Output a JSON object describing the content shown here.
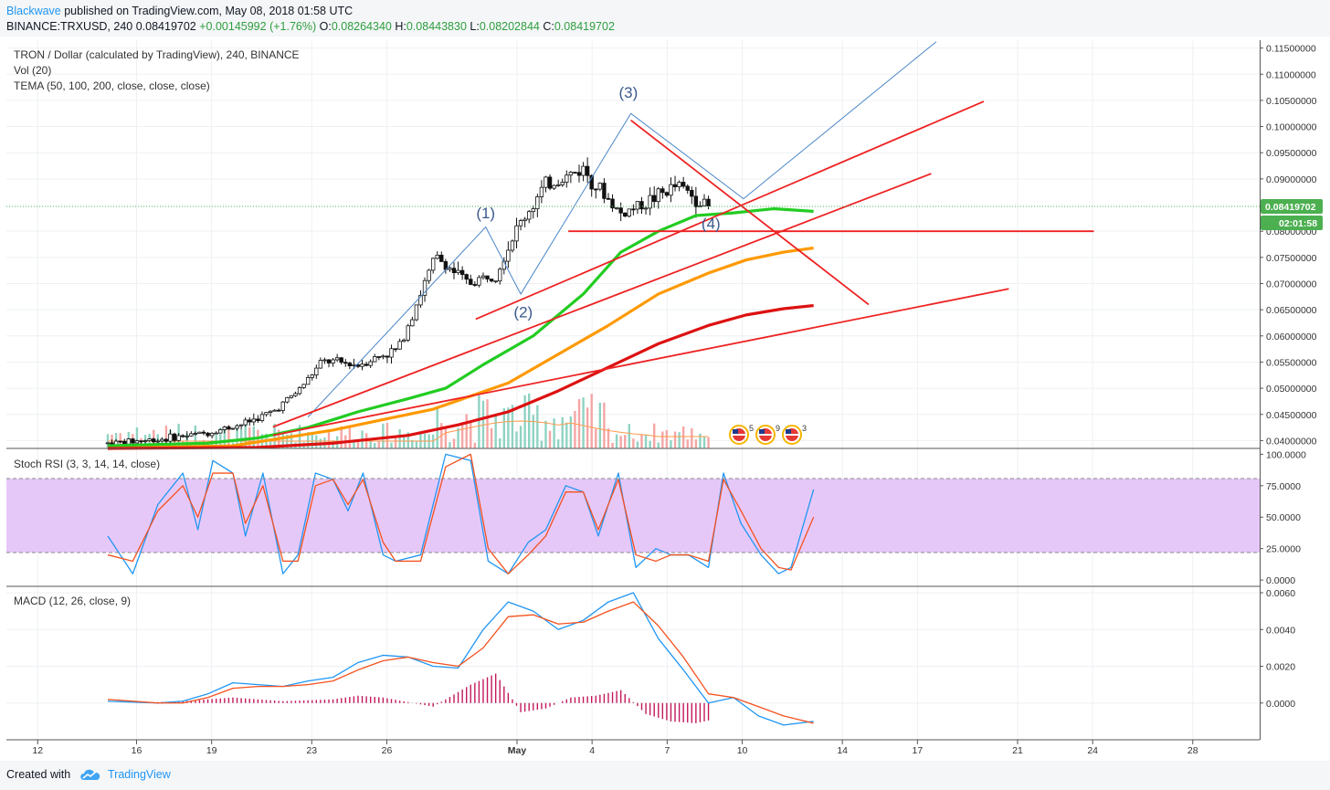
{
  "header": {
    "author": "Blackwave",
    "published": "published on TradingView.com, May 08, 2018 01:58 UTC",
    "symbol": "BINANCE:TRXUSD, 240",
    "last": "0.08419702",
    "change": "+0.00145992 (+1.76%)",
    "open_label": "O:",
    "open": "0.08264340",
    "high_label": "H:",
    "high": "0.08443830",
    "low_label": "L:",
    "low": "0.08202844",
    "close_label": "C:",
    "close": "0.08419702"
  },
  "footer": {
    "created_with": "Created with",
    "brand": "TradingView"
  },
  "colors": {
    "bull": "#26a69a",
    "bear": "#ef5350",
    "candle": "#111111",
    "tema50": "#22cc22",
    "tema100": "#ff9900",
    "tema200": "#dd1111",
    "trend": "#ee2222",
    "wave": "#4a86c8",
    "stoch_k": "#2196f3",
    "stoch_d": "#f4511e",
    "stoch_band": "#e6c8f8",
    "macd": "#2196f3",
    "signal": "#f4511e",
    "hist": "#c2185b",
    "price_label": "#4caf50"
  },
  "chart_data": [
    {
      "type": "candlestick",
      "title": "TRON / Dollar (calculated by TradingView), 240, BINANCE",
      "indicators": [
        "Vol (20)",
        "TEMA (50, 100, 200, close, close, close)"
      ],
      "y_ticks": [
        "0.11500000",
        "0.11000000",
        "0.10500000",
        "0.10000000",
        "0.09500000",
        "0.09000000",
        "0.08419702",
        "0.08000000",
        "0.07500000",
        "0.07000000",
        "0.06500000",
        "0.06000000",
        "0.05500000",
        "0.05000000",
        "0.04500000",
        "0.04000000"
      ],
      "ylim": [
        0.0385,
        0.1165
      ],
      "last_price": "0.08419702",
      "countdown": "02:01:58",
      "x_ticks": [
        "12",
        "16",
        "19",
        "23",
        "26",
        "May",
        "4",
        "7",
        "10",
        "14",
        "17",
        "21",
        "24",
        "28"
      ],
      "xlim": [
        0,
        27.6
      ],
      "approx_close_series": {
        "x": [
          0,
          2,
          4,
          5.4,
          6.6,
          7.6,
          8.6,
          10,
          11.6,
          13.1,
          14.4,
          15.5,
          16.4,
          17.5,
          19,
          19.7,
          20.5,
          21.6,
          22.8,
          24.1
        ],
        "y": [
          0.0395,
          0.0402,
          0.0415,
          0.0432,
          0.0455,
          0.0495,
          0.0552,
          0.0545,
          0.0575,
          0.0752,
          0.07,
          0.072,
          0.081,
          0.0887,
          0.092,
          0.0877,
          0.0833,
          0.0858,
          0.0888,
          0.0842
        ]
      },
      "wave_labels": [
        {
          "text": "(1)",
          "x": 15.1,
          "y": 0.0825
        },
        {
          "text": "(2)",
          "x": 16.6,
          "y": 0.0635
        },
        {
          "text": "(3)",
          "x": 20.8,
          "y": 0.1055
        },
        {
          "text": "(4)",
          "x": 24.1,
          "y": 0.0805
        }
      ],
      "wave_lines": [
        [
          [
            8.0,
            0.0445
          ],
          [
            15.1,
            0.0808
          ],
          [
            16.5,
            0.068
          ],
          [
            20.9,
            0.1025
          ],
          [
            25.4,
            0.0862
          ],
          [
            33.1,
            0.1162
          ]
        ]
      ],
      "trend_lines": [
        {
          "x1": 20.9,
          "y1": 0.1012,
          "x2": 30.4,
          "y2": 0.066
        },
        {
          "x1": 14.7,
          "y1": 0.0632,
          "x2": 35.0,
          "y2": 0.1048
        },
        {
          "x1": 6.6,
          "y1": 0.0426,
          "x2": 32.9,
          "y2": 0.091
        },
        {
          "x1": 18.4,
          "y1": 0.08,
          "x2": 39.4,
          "y2": 0.08
        },
        {
          "x1": 6.6,
          "y1": 0.041,
          "x2": 36.0,
          "y2": 0.069
        }
      ],
      "tema_series": [
        {
          "name": "TEMA 50",
          "x": [
            0,
            4,
            6,
            8,
            10,
            12,
            13.5,
            15,
            17,
            19,
            20.5,
            22,
            23.5,
            25,
            26.6,
            28.2
          ],
          "y": [
            0.039,
            0.0395,
            0.0405,
            0.0425,
            0.0455,
            0.048,
            0.05,
            0.0545,
            0.06,
            0.068,
            0.076,
            0.08,
            0.083,
            0.0835,
            0.0843,
            0.0838
          ]
        },
        {
          "name": "TEMA 100",
          "x": [
            0,
            5,
            7,
            9,
            11,
            13,
            14.5,
            16,
            18,
            20,
            22,
            24,
            25.5,
            27,
            28.2
          ],
          "y": [
            0.0385,
            0.039,
            0.0405,
            0.042,
            0.044,
            0.046,
            0.0485,
            0.051,
            0.0565,
            0.062,
            0.068,
            0.072,
            0.0745,
            0.076,
            0.0768
          ]
        },
        {
          "name": "TEMA 200",
          "x": [
            0,
            6,
            9,
            12,
            14,
            16,
            18,
            20,
            22,
            24,
            25.5,
            27,
            28.2
          ],
          "y": [
            0.0385,
            0.0387,
            0.0395,
            0.041,
            0.043,
            0.0455,
            0.0495,
            0.054,
            0.0585,
            0.062,
            0.064,
            0.0652,
            0.0658
          ]
        }
      ],
      "event_markers": [
        "5",
        "9",
        "3"
      ]
    },
    {
      "type": "line",
      "title": "Stoch RSI (3, 3, 14, 14, close)",
      "y_ticks": [
        "100.0000",
        "75.0000",
        "50.0000",
        "25.0000",
        "0.0000"
      ],
      "ylim": [
        -5,
        101
      ],
      "bands": [
        20,
        80
      ],
      "series": [
        {
          "name": "K",
          "x": [
            0,
            1,
            2,
            3,
            3.6,
            4.2,
            5,
            5.5,
            6.2,
            7,
            7.6,
            8.3,
            9,
            9.6,
            10.2,
            11,
            11.5,
            12.5,
            13.5,
            14.5,
            15.2,
            16,
            16.8,
            17.5,
            18.3,
            19,
            19.6,
            20.4,
            21.1,
            21.9,
            22.5,
            23.2,
            24,
            24.6,
            25.3,
            26.1,
            26.8,
            27.3,
            28.2
          ],
          "y": [
            35,
            5,
            60,
            85,
            40,
            95,
            85,
            35,
            85,
            5,
            20,
            85,
            80,
            55,
            85,
            20,
            15,
            20,
            100,
            95,
            15,
            5,
            30,
            40,
            75,
            70,
            35,
            85,
            10,
            25,
            20,
            20,
            10,
            85,
            45,
            20,
            5,
            10,
            72
          ]
        },
        {
          "name": "D",
          "x": [
            0,
            1,
            2,
            3,
            3.6,
            4.2,
            5,
            5.5,
            6.2,
            7,
            7.6,
            8.3,
            9,
            9.6,
            10.2,
            11,
            11.5,
            12.5,
            13.5,
            14.5,
            15.2,
            16,
            16.8,
            17.5,
            18.3,
            19,
            19.6,
            20.4,
            21.1,
            21.9,
            22.5,
            23.2,
            24,
            24.6,
            25.3,
            26.1,
            26.8,
            27.3,
            28.2
          ],
          "y": [
            20,
            15,
            55,
            75,
            50,
            85,
            85,
            45,
            75,
            15,
            15,
            75,
            80,
            60,
            80,
            30,
            15,
            15,
            90,
            100,
            25,
            5,
            20,
            35,
            70,
            70,
            40,
            80,
            20,
            15,
            20,
            20,
            15,
            80,
            55,
            25,
            10,
            8,
            50
          ]
        }
      ]
    },
    {
      "type": "line",
      "title": "MACD (12, 26, close, 9)",
      "y_ticks": [
        "0.0060",
        "0.0040",
        "0.0020",
        "0.0000"
      ],
      "ylim": [
        -0.002,
        0.0062
      ],
      "series": [
        {
          "name": "MACD",
          "x": [
            0,
            2,
            3,
            4,
            5,
            6,
            7,
            8,
            9,
            10,
            11,
            12,
            13,
            14,
            15,
            16,
            17,
            18,
            19,
            20,
            21,
            22,
            23,
            24,
            25,
            26,
            27,
            28.2
          ],
          "y": [
            0.0001,
            0.0,
            0.0001,
            0.0005,
            0.0011,
            0.001,
            0.0009,
            0.0012,
            0.0014,
            0.0022,
            0.0026,
            0.0025,
            0.002,
            0.0019,
            0.004,
            0.0055,
            0.005,
            0.004,
            0.0045,
            0.0055,
            0.006,
            0.0035,
            0.0018,
            0.0,
            0.0003,
            -0.0007,
            -0.0012,
            -0.001
          ]
        },
        {
          "name": "Signal",
          "x": [
            0,
            2,
            3,
            4,
            5,
            6,
            7,
            8,
            9,
            10,
            11,
            12,
            13,
            14,
            15,
            16,
            17,
            18,
            19,
            20,
            21,
            22,
            23,
            24,
            25,
            26,
            27,
            28.2
          ],
          "y": [
            0.0002,
            0.0,
            0.0,
            0.0003,
            0.0008,
            0.0009,
            0.0009,
            0.001,
            0.0012,
            0.0018,
            0.0023,
            0.0025,
            0.0022,
            0.002,
            0.003,
            0.0047,
            0.0048,
            0.0043,
            0.0044,
            0.005,
            0.0055,
            0.0042,
            0.0025,
            0.0005,
            0.0003,
            -0.0002,
            -0.0007,
            -0.0011
          ]
        }
      ],
      "histogram": {
        "x": [
          1,
          3,
          5,
          7,
          9,
          10,
          11,
          13,
          14.5,
          15.5,
          16.5,
          17.5,
          18.5,
          19.5,
          20.5,
          21.5,
          22.5,
          23.5,
          24.5,
          25.5,
          26.5,
          27.5
        ],
        "y": [
          0.0,
          0.0001,
          0.0003,
          0.0001,
          0.0002,
          0.0004,
          0.0003,
          -0.0002,
          0.001,
          0.0016,
          -0.0005,
          -0.0003,
          0.0003,
          0.0004,
          0.0007,
          -0.0006,
          -0.001,
          -0.0011,
          -0.0008,
          -0.0005,
          -0.0005,
          -0.0003
        ]
      }
    }
  ]
}
